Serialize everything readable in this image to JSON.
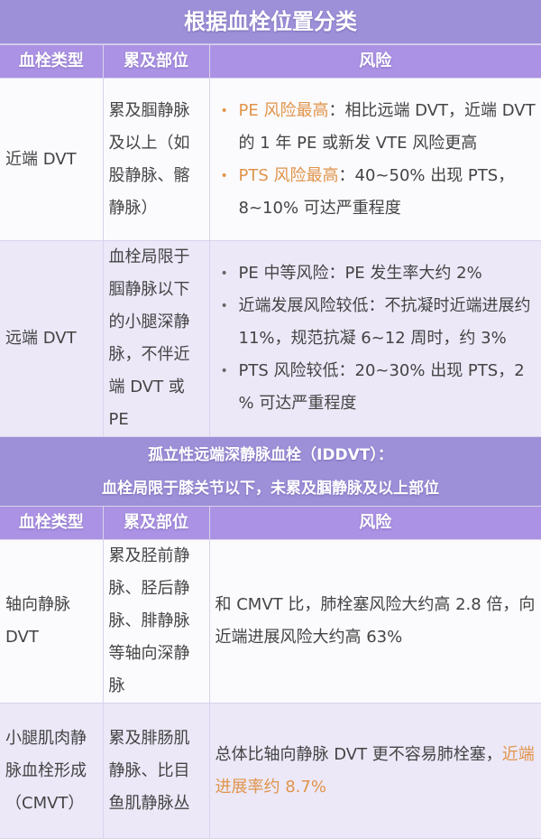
{
  "title": "根据血栓位置分类",
  "headers": [
    "血栓类型",
    "累及部位",
    "风险"
  ],
  "rows_top": [
    {
      "type": "近端 DVT",
      "site": "累及腘静脉及以上（如股静脉、髂静脉）",
      "risks": [
        {
          "highlight": "PE 风险最高",
          "text": "：相比远端 DVT，近端 DVT 的 1 年 PE 或新发 VTE 风险更高"
        },
        {
          "highlight": "PTS 风险最高",
          "text": "：40~50% 出现 PTS，8~10% 可达严重程度"
        }
      ]
    },
    {
      "type": "远端 DVT",
      "site": "血栓局限于腘静脉以下的小腿深静脉，不伴近端 DVT 或 PE",
      "risks": [
        {
          "text": "PE 中等风险：PE 发生率大约 2%"
        },
        {
          "text": "近端发展风险较低：不抗凝时近端进展约 11%，规范抗凝 6~12 周时，约 3%"
        },
        {
          "text": "PTS 风险较低：20~30% 出现 PTS，2 % 可达严重程度"
        }
      ]
    }
  ],
  "section": {
    "line1": "孤立性远端深静脉血栓（IDDVT）：",
    "line2": "血栓局限于膝关节以下，未累及腘静脉及以上部位"
  },
  "rows_bottom": [
    {
      "type": "轴向静脉 DVT",
      "site": "累及胫前静脉、胫后静脉、腓静脉等轴向深静脉",
      "risk": "和 CMVT 比，肺栓塞风险大约高 2.8 倍，向近端进展风险大约高 63%"
    },
    {
      "type": "小腿肌肉静脉血栓形成（CMVT）",
      "site": "累及腓肠肌静脉、比目鱼肌静脉丛",
      "risk": "总体比轴向静脉 DVT 更不容易肺栓塞，",
      "risk_highlight": "近端进展率约 8.7%"
    }
  ],
  "colors": {
    "band": "#9d90d8",
    "header": "#ab92e4",
    "highlight": "#e0944a",
    "row_alt": "#ece8f8"
  }
}
